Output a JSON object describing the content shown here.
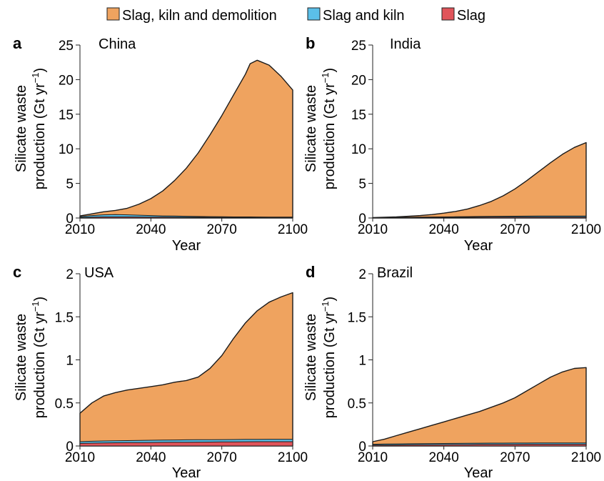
{
  "legend": {
    "colors": {
      "demolition": "#efa35f",
      "kiln": "#5bbfe8",
      "slag": "#e0545a"
    },
    "items": [
      {
        "label": "Slag, kiln and demolition",
        "color_key": "demolition"
      },
      {
        "label": "Slag and kiln",
        "color_key": "kiln"
      },
      {
        "label": "Slag",
        "color_key": "slag"
      }
    ]
  },
  "shared": {
    "ylabel_line1": "Silicate waste",
    "ylabel_line2_prefix": "production (Gt yr",
    "ylabel_line2_sup": "−1",
    "ylabel_line2_suffix": ")",
    "xlabel": "Year",
    "xticks": [
      "2010",
      "2040",
      "2070",
      "2100"
    ]
  },
  "chart_data": [
    {
      "panel": "a",
      "title": "China",
      "type": "area",
      "xlim": [
        2010,
        2100
      ],
      "ylim": [
        0,
        25
      ],
      "yticks": [
        "0",
        "5",
        "10",
        "15",
        "20",
        "25"
      ],
      "x": [
        2010,
        2015,
        2020,
        2025,
        2030,
        2035,
        2040,
        2045,
        2050,
        2055,
        2060,
        2065,
        2070,
        2075,
        2080,
        2082,
        2085,
        2090,
        2095,
        2100
      ],
      "series": [
        {
          "name": "Slag, kiln and demolition",
          "values": [
            0.3,
            0.6,
            0.9,
            1.1,
            1.4,
            2.0,
            2.8,
            3.9,
            5.4,
            7.2,
            9.4,
            12.0,
            14.8,
            17.8,
            20.8,
            22.3,
            22.8,
            22.1,
            20.5,
            18.5
          ]
        },
        {
          "name": "Slag and kiln",
          "values": [
            0.2,
            0.35,
            0.45,
            0.5,
            0.45,
            0.4,
            0.35,
            0.3,
            0.28,
            0.25,
            0.22,
            0.2,
            0.18,
            0.16,
            0.15,
            0.15,
            0.14,
            0.13,
            0.12,
            0.12
          ]
        },
        {
          "name": "Slag",
          "values": [
            0.08,
            0.12,
            0.15,
            0.16,
            0.15,
            0.14,
            0.13,
            0.12,
            0.11,
            0.1,
            0.1,
            0.09,
            0.09,
            0.08,
            0.08,
            0.08,
            0.07,
            0.07,
            0.07,
            0.07
          ]
        }
      ]
    },
    {
      "panel": "b",
      "title": "India",
      "type": "area",
      "xlim": [
        2010,
        2100
      ],
      "ylim": [
        0,
        25
      ],
      "yticks": [
        "0",
        "5",
        "10",
        "15",
        "20",
        "25"
      ],
      "x": [
        2010,
        2015,
        2020,
        2025,
        2030,
        2035,
        2040,
        2045,
        2050,
        2055,
        2060,
        2065,
        2070,
        2075,
        2080,
        2085,
        2090,
        2095,
        2100
      ],
      "series": [
        {
          "name": "Slag, kiln and demolition",
          "values": [
            0.05,
            0.1,
            0.15,
            0.25,
            0.35,
            0.5,
            0.7,
            0.95,
            1.3,
            1.8,
            2.4,
            3.2,
            4.2,
            5.4,
            6.7,
            8.0,
            9.2,
            10.2,
            10.9
          ]
        },
        {
          "name": "Slag and kiln",
          "values": [
            0.04,
            0.06,
            0.08,
            0.1,
            0.12,
            0.14,
            0.16,
            0.18,
            0.2,
            0.22,
            0.24,
            0.25,
            0.26,
            0.27,
            0.28,
            0.28,
            0.28,
            0.28,
            0.28
          ]
        },
        {
          "name": "Slag",
          "values": [
            0.02,
            0.03,
            0.04,
            0.05,
            0.06,
            0.07,
            0.08,
            0.09,
            0.1,
            0.11,
            0.12,
            0.12,
            0.13,
            0.13,
            0.13,
            0.13,
            0.13,
            0.13,
            0.13
          ]
        }
      ]
    },
    {
      "panel": "c",
      "title": "USA",
      "type": "area",
      "xlim": [
        2010,
        2100
      ],
      "ylim": [
        0,
        2
      ],
      "yticks": [
        "0",
        "0.5",
        "1",
        "1.5",
        "2"
      ],
      "x": [
        2010,
        2015,
        2020,
        2025,
        2030,
        2035,
        2040,
        2045,
        2050,
        2055,
        2060,
        2065,
        2070,
        2075,
        2080,
        2085,
        2090,
        2095,
        2100
      ],
      "series": [
        {
          "name": "Slag, kiln and demolition",
          "values": [
            0.38,
            0.5,
            0.58,
            0.62,
            0.65,
            0.67,
            0.69,
            0.71,
            0.74,
            0.76,
            0.8,
            0.9,
            1.05,
            1.25,
            1.43,
            1.57,
            1.67,
            1.73,
            1.78
          ]
        },
        {
          "name": "Slag and kiln",
          "values": [
            0.05,
            0.055,
            0.058,
            0.06,
            0.062,
            0.064,
            0.066,
            0.068,
            0.07,
            0.071,
            0.072,
            0.073,
            0.074,
            0.075,
            0.076,
            0.077,
            0.078,
            0.078,
            0.078
          ]
        },
        {
          "name": "Slag",
          "values": [
            0.03,
            0.033,
            0.035,
            0.037,
            0.039,
            0.04,
            0.041,
            0.042,
            0.043,
            0.044,
            0.045,
            0.046,
            0.047,
            0.048,
            0.049,
            0.05,
            0.05,
            0.05,
            0.05
          ]
        }
      ]
    },
    {
      "panel": "d",
      "title": "Brazil",
      "type": "area",
      "xlim": [
        2010,
        2100
      ],
      "ylim": [
        0,
        2
      ],
      "yticks": [
        "0",
        "0.5",
        "1",
        "1.5",
        "2"
      ],
      "x": [
        2010,
        2015,
        2020,
        2025,
        2030,
        2035,
        2040,
        2045,
        2050,
        2055,
        2060,
        2065,
        2070,
        2075,
        2080,
        2085,
        2090,
        2095,
        2100
      ],
      "series": [
        {
          "name": "Slag, kiln and demolition",
          "values": [
            0.05,
            0.08,
            0.12,
            0.16,
            0.2,
            0.24,
            0.28,
            0.32,
            0.36,
            0.4,
            0.45,
            0.5,
            0.56,
            0.64,
            0.72,
            0.8,
            0.86,
            0.9,
            0.91
          ]
        },
        {
          "name": "Slag and kiln",
          "values": [
            0.02,
            0.022,
            0.024,
            0.026,
            0.027,
            0.028,
            0.029,
            0.03,
            0.031,
            0.032,
            0.033,
            0.033,
            0.034,
            0.034,
            0.035,
            0.035,
            0.035,
            0.035,
            0.035
          ]
        },
        {
          "name": "Slag",
          "values": [
            0.01,
            0.011,
            0.012,
            0.013,
            0.014,
            0.015,
            0.016,
            0.017,
            0.017,
            0.018,
            0.018,
            0.019,
            0.019,
            0.02,
            0.02,
            0.02,
            0.02,
            0.02,
            0.02
          ]
        }
      ]
    }
  ]
}
